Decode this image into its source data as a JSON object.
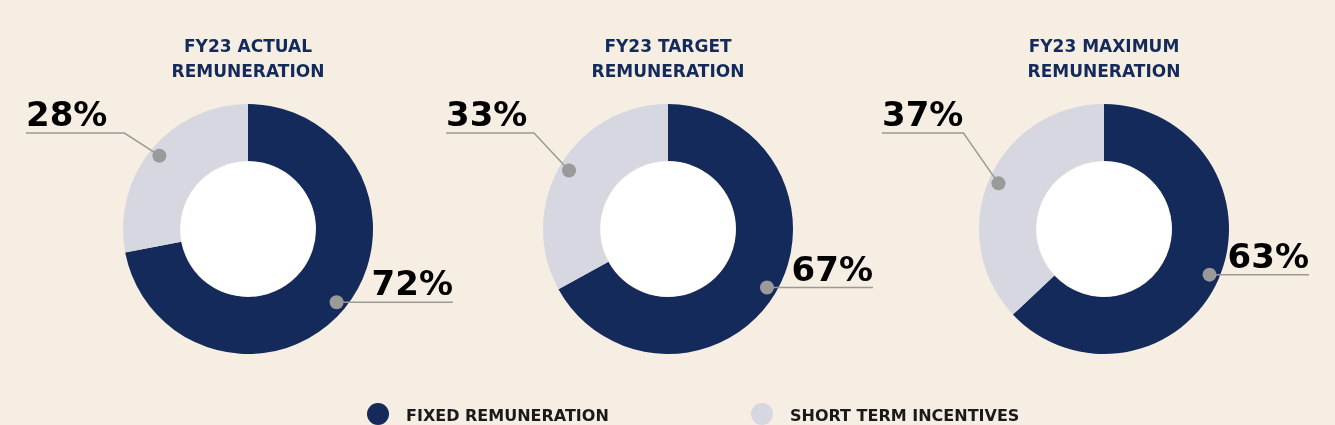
{
  "chart_data": [
    {
      "type": "donut",
      "title": "FY23 ACTUAL REMUNERATION",
      "categories": [
        "FIXED REMUNERATION",
        "SHORT TERM INCENTIVES"
      ],
      "values": [
        72,
        28
      ],
      "colors": [
        "#132a5a",
        "#d6d7e0"
      ],
      "value_labels": [
        "72%",
        "28%"
      ],
      "legend": "bottom"
    },
    {
      "type": "donut",
      "title": "FY23 TARGET REMUNERATION",
      "categories": [
        null,
        null
      ],
      "values": [
        67,
        33
      ],
      "colors": [
        "#132a5a",
        "#d6d7e0"
      ],
      "value_labels": [
        "67%",
        "33%"
      ]
    },
    {
      "type": "donut",
      "title": "FY23 MAXIMUM REMUNERATION",
      "categories": [
        null,
        null
      ],
      "values": [
        63,
        37
      ],
      "colors": [
        "#132a5a",
        "#d6d7e0"
      ],
      "value_labels": [
        "63%",
        "37%"
      ]
    }
  ]
}
